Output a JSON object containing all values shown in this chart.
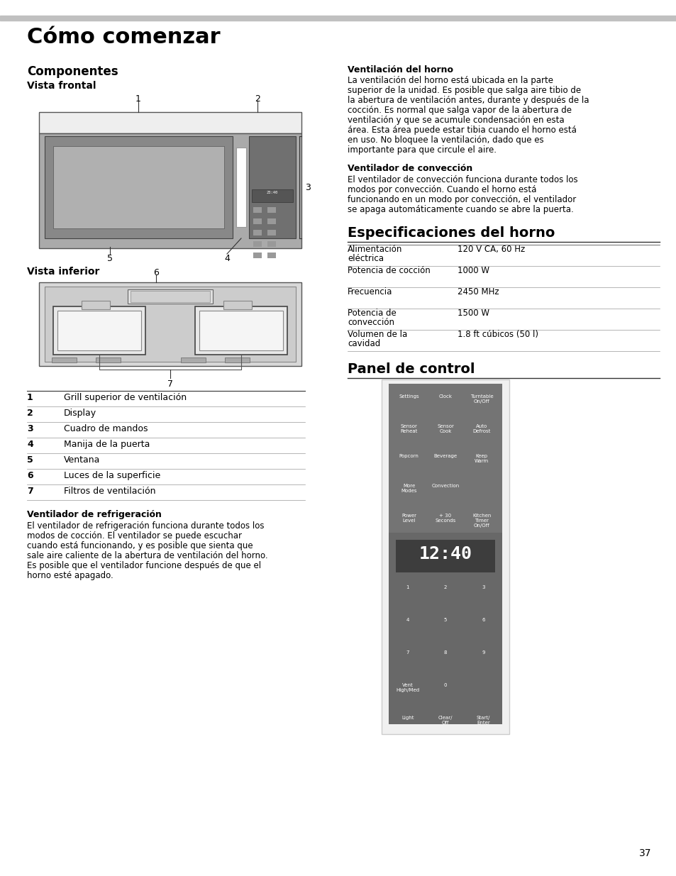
{
  "title": "Cómo comenzar",
  "section1": "Componentes",
  "subsec1a": "Vista frontal",
  "subsec1b": "Vista inferior",
  "right_headers": [
    "Ventilación del horno",
    "Ventilador de convección"
  ],
  "ventilacion_lines": [
    "La ventilación del horno está ubicada en la parte",
    "superior de la unidad. Es posible que salga aire tibio de",
    "la abertura de ventilación antes, durante y después de la",
    "cocción. Es normal que salga vapor de la abertura de",
    "ventilación y que se acumule condensación en esta",
    "área. Esta área puede estar tibia cuando el horno está",
    "en uso. No bloquee la ventilación, dado que es",
    "importante para que circule el aire."
  ],
  "conveccion_lines": [
    "El ventilador de convección funciona durante todos los",
    "modos por convección. Cuando el horno está",
    "funcionando en un modo por convección, el ventilador",
    "se apaga automáticamente cuando se abre la puerta."
  ],
  "section2": "Especificaciones del horno",
  "spec_rows": [
    [
      "Alimentación\neléctrica",
      "120 V CA, 60 Hz"
    ],
    [
      "Potencia de cocción",
      "1000 W"
    ],
    [
      "Frecuencia",
      "2450 MHz"
    ],
    [
      "Potencia de\nconvección",
      "1500 W"
    ],
    [
      "Volumen de la\ncavidad",
      "1.8 ft cúbicos (50 l)"
    ]
  ],
  "section3": "Panel de control",
  "component_labels": [
    [
      "1",
      "Grill superior de ventilación"
    ],
    [
      "2",
      "Display"
    ],
    [
      "3",
      "Cuadro de mandos"
    ],
    [
      "4",
      "Manija de la puerta"
    ],
    [
      "5",
      "Ventana"
    ],
    [
      "6",
      "Luces de la superficie"
    ],
    [
      "7",
      "Filtros de ventilación"
    ]
  ],
  "refrig_title": "Ventilador de refrigeración",
  "refrig_lines": [
    "El ventilador de refrigeración funciona durante todos los",
    "modos de cocción. El ventilador se puede escuchar",
    "cuando está funcionando, y es posible que sienta que",
    "sale aire caliente de la abertura de ventilación del horno.",
    "Es posible que el ventilador funcione después de que el",
    "horno esté apagado."
  ],
  "panel_buttons_top": [
    [
      [
        "Settings",
        0.18
      ],
      [
        "Clock",
        0.5
      ],
      [
        "Turntable\nOn/Off",
        0.82
      ]
    ],
    [
      [
        "Sensor\nReheat",
        0.18
      ],
      [
        "Sensor\nCook",
        0.5
      ],
      [
        "Auto\nDefrost",
        0.82
      ]
    ],
    [
      [
        "Popcorn",
        0.18
      ],
      [
        "Beverage",
        0.5
      ],
      [
        "Keep\nWarm",
        0.82
      ]
    ],
    [
      [
        "More\nModes",
        0.18
      ],
      [
        "Convection",
        0.5
      ],
      [
        "",
        0.82
      ]
    ],
    [
      [
        "Power\nLevel",
        0.18
      ],
      [
        "+ 30\nSeconds",
        0.5
      ],
      [
        "Kitchen\nTimer\nOn/Off",
        0.82
      ]
    ]
  ],
  "pad_rows": [
    [
      "1",
      "2",
      "3"
    ],
    [
      "4",
      "5",
      "6"
    ],
    [
      "7",
      "8",
      "9"
    ],
    [
      "Vent\nHigh/Med",
      "0",
      ""
    ],
    [
      "Light",
      "Clear/\nOff",
      "Start/\nEnter"
    ]
  ],
  "display_text": "12:40",
  "page_number": "37",
  "bg_color": "#ffffff",
  "text_color": "#000000",
  "gray_bar_color": "#c0c0c0",
  "panel_bg": "#686868",
  "panel_top_bg": "#747474",
  "display_bg": "#3d3d3d"
}
